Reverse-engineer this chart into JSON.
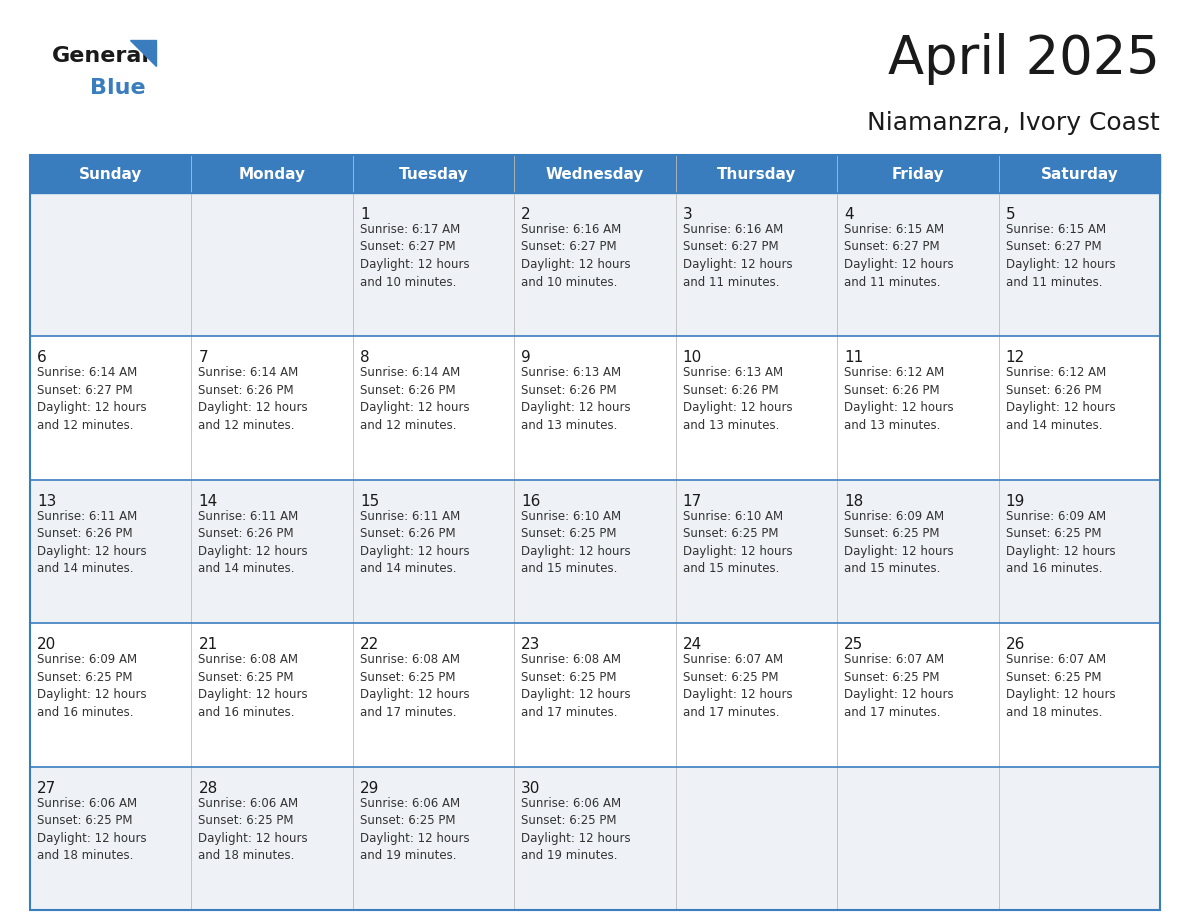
{
  "title": "April 2025",
  "subtitle": "Niamanzra, Ivory Coast",
  "header_bg_color": "#3a7dbf",
  "header_text_color": "#ffffff",
  "border_color": "#3a7dbf",
  "separator_color": "#4a90c8",
  "day_headers": [
    "Sunday",
    "Monday",
    "Tuesday",
    "Wednesday",
    "Thursday",
    "Friday",
    "Saturday"
  ],
  "calendar": [
    [
      {
        "day": null,
        "sunrise": null,
        "sunset": null,
        "daylight": null
      },
      {
        "day": null,
        "sunrise": null,
        "sunset": null,
        "daylight": null
      },
      {
        "day": 1,
        "sunrise": "6:17 AM",
        "sunset": "6:27 PM",
        "daylight": "12 hours\nand 10 minutes."
      },
      {
        "day": 2,
        "sunrise": "6:16 AM",
        "sunset": "6:27 PM",
        "daylight": "12 hours\nand 10 minutes."
      },
      {
        "day": 3,
        "sunrise": "6:16 AM",
        "sunset": "6:27 PM",
        "daylight": "12 hours\nand 11 minutes."
      },
      {
        "day": 4,
        "sunrise": "6:15 AM",
        "sunset": "6:27 PM",
        "daylight": "12 hours\nand 11 minutes."
      },
      {
        "day": 5,
        "sunrise": "6:15 AM",
        "sunset": "6:27 PM",
        "daylight": "12 hours\nand 11 minutes."
      }
    ],
    [
      {
        "day": 6,
        "sunrise": "6:14 AM",
        "sunset": "6:27 PM",
        "daylight": "12 hours\nand 12 minutes."
      },
      {
        "day": 7,
        "sunrise": "6:14 AM",
        "sunset": "6:26 PM",
        "daylight": "12 hours\nand 12 minutes."
      },
      {
        "day": 8,
        "sunrise": "6:14 AM",
        "sunset": "6:26 PM",
        "daylight": "12 hours\nand 12 minutes."
      },
      {
        "day": 9,
        "sunrise": "6:13 AM",
        "sunset": "6:26 PM",
        "daylight": "12 hours\nand 13 minutes."
      },
      {
        "day": 10,
        "sunrise": "6:13 AM",
        "sunset": "6:26 PM",
        "daylight": "12 hours\nand 13 minutes."
      },
      {
        "day": 11,
        "sunrise": "6:12 AM",
        "sunset": "6:26 PM",
        "daylight": "12 hours\nand 13 minutes."
      },
      {
        "day": 12,
        "sunrise": "6:12 AM",
        "sunset": "6:26 PM",
        "daylight": "12 hours\nand 14 minutes."
      }
    ],
    [
      {
        "day": 13,
        "sunrise": "6:11 AM",
        "sunset": "6:26 PM",
        "daylight": "12 hours\nand 14 minutes."
      },
      {
        "day": 14,
        "sunrise": "6:11 AM",
        "sunset": "6:26 PM",
        "daylight": "12 hours\nand 14 minutes."
      },
      {
        "day": 15,
        "sunrise": "6:11 AM",
        "sunset": "6:26 PM",
        "daylight": "12 hours\nand 14 minutes."
      },
      {
        "day": 16,
        "sunrise": "6:10 AM",
        "sunset": "6:25 PM",
        "daylight": "12 hours\nand 15 minutes."
      },
      {
        "day": 17,
        "sunrise": "6:10 AM",
        "sunset": "6:25 PM",
        "daylight": "12 hours\nand 15 minutes."
      },
      {
        "day": 18,
        "sunrise": "6:09 AM",
        "sunset": "6:25 PM",
        "daylight": "12 hours\nand 15 minutes."
      },
      {
        "day": 19,
        "sunrise": "6:09 AM",
        "sunset": "6:25 PM",
        "daylight": "12 hours\nand 16 minutes."
      }
    ],
    [
      {
        "day": 20,
        "sunrise": "6:09 AM",
        "sunset": "6:25 PM",
        "daylight": "12 hours\nand 16 minutes."
      },
      {
        "day": 21,
        "sunrise": "6:08 AM",
        "sunset": "6:25 PM",
        "daylight": "12 hours\nand 16 minutes."
      },
      {
        "day": 22,
        "sunrise": "6:08 AM",
        "sunset": "6:25 PM",
        "daylight": "12 hours\nand 17 minutes."
      },
      {
        "day": 23,
        "sunrise": "6:08 AM",
        "sunset": "6:25 PM",
        "daylight": "12 hours\nand 17 minutes."
      },
      {
        "day": 24,
        "sunrise": "6:07 AM",
        "sunset": "6:25 PM",
        "daylight": "12 hours\nand 17 minutes."
      },
      {
        "day": 25,
        "sunrise": "6:07 AM",
        "sunset": "6:25 PM",
        "daylight": "12 hours\nand 17 minutes."
      },
      {
        "day": 26,
        "sunrise": "6:07 AM",
        "sunset": "6:25 PM",
        "daylight": "12 hours\nand 18 minutes."
      }
    ],
    [
      {
        "day": 27,
        "sunrise": "6:06 AM",
        "sunset": "6:25 PM",
        "daylight": "12 hours\nand 18 minutes."
      },
      {
        "day": 28,
        "sunrise": "6:06 AM",
        "sunset": "6:25 PM",
        "daylight": "12 hours\nand 18 minutes."
      },
      {
        "day": 29,
        "sunrise": "6:06 AM",
        "sunset": "6:25 PM",
        "daylight": "12 hours\nand 19 minutes."
      },
      {
        "day": 30,
        "sunrise": "6:06 AM",
        "sunset": "6:25 PM",
        "daylight": "12 hours\nand 19 minutes."
      },
      {
        "day": null,
        "sunrise": null,
        "sunset": null,
        "daylight": null
      },
      {
        "day": null,
        "sunrise": null,
        "sunset": null,
        "daylight": null
      },
      {
        "day": null,
        "sunrise": null,
        "sunset": null,
        "daylight": null
      }
    ]
  ],
  "text_color": "#1a1a1a",
  "info_text_color": "#333333",
  "cell_bg_odd": "#eef2f7",
  "cell_bg_even": "#ffffff"
}
